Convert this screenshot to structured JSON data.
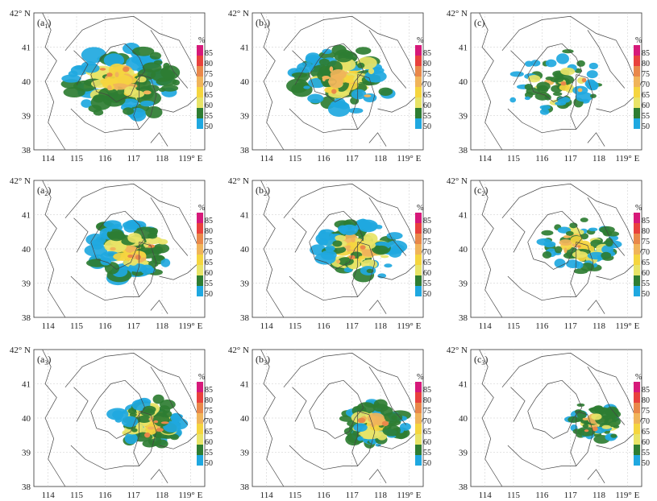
{
  "figure": {
    "lat_labels": [
      "42° N",
      "41",
      "40",
      "39",
      "38"
    ],
    "lon_labels": [
      "114",
      "115",
      "116",
      "117",
      "118",
      "119° E"
    ],
    "colorbar": {
      "unit": "%",
      "levels": [
        "85",
        "80",
        "75",
        "70",
        "65",
        "60",
        "55",
        "50"
      ],
      "colors": [
        "#d6197a",
        "#e8413d",
        "#e9884a",
        "#f0b45a",
        "#f5d53f",
        "#e8e467",
        "#2e7d32",
        "#1fa8e0"
      ]
    },
    "panels": [
      {
        "id": "a1",
        "letter": "a",
        "sub": "1",
        "intensity": 1.0,
        "cx": 116.6,
        "cy": 39.9,
        "spread": 1.2
      },
      {
        "id": "b1",
        "letter": "b",
        "sub": "1",
        "intensity": 0.9,
        "cx": 116.7,
        "cy": 40.0,
        "spread": 1.1
      },
      {
        "id": "c1",
        "letter": "c",
        "sub": "",
        "intensity": 0.45,
        "cx": 116.6,
        "cy": 39.9,
        "spread": 1.1
      },
      {
        "id": "a2",
        "letter": "a",
        "sub": "2",
        "intensity": 0.95,
        "cx": 117.0,
        "cy": 39.9,
        "spread": 1.0
      },
      {
        "id": "b2",
        "letter": "b",
        "sub": "2",
        "intensity": 0.8,
        "cx": 117.2,
        "cy": 39.9,
        "spread": 1.0
      },
      {
        "id": "c2",
        "letter": "c",
        "sub": "2",
        "intensity": 0.55,
        "cx": 117.3,
        "cy": 40.0,
        "spread": 0.9
      },
      {
        "id": "a3",
        "letter": "a",
        "sub": "3",
        "intensity": 0.85,
        "cx": 117.6,
        "cy": 39.8,
        "spread": 0.8
      },
      {
        "id": "b3",
        "letter": "b",
        "sub": "3",
        "intensity": 0.75,
        "cx": 117.8,
        "cy": 39.8,
        "spread": 0.7
      },
      {
        "id": "c3",
        "letter": "c",
        "sub": "3",
        "intensity": 0.5,
        "cx": 117.9,
        "cy": 39.8,
        "spread": 0.6
      }
    ]
  }
}
